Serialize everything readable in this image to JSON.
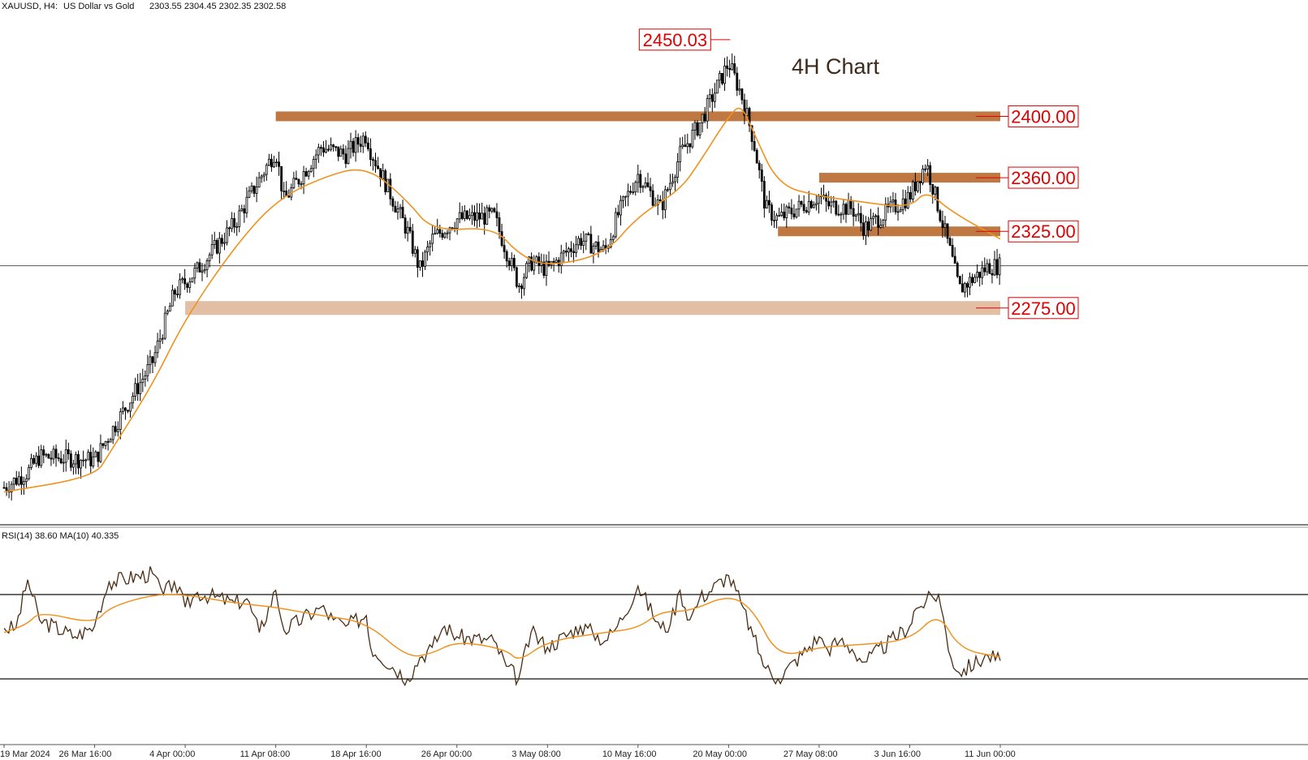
{
  "header": {
    "symbol": "XAUUSD, H4:",
    "description": "US Dollar vs Gold",
    "ohlc": "2303.55 2304.45 2302.35 2302.58"
  },
  "annotation": "4H Chart",
  "colors": {
    "candle": "#000000",
    "ma": "#f0921e",
    "zone_dark": "#c07843",
    "zone_light": "#e2bfa4",
    "label_text": "#e00000",
    "label_border": "#e00000",
    "rsi_line": "#4a2c12",
    "rsi_ma": "#f0921e"
  },
  "chart_data": [
    {
      "type": "candlestick",
      "panel": "price",
      "symbol": "XAUUSD",
      "timeframe": "H4",
      "x_range": [
        "19 Mar 2024",
        "11 Jun 00:00"
      ],
      "ylim": [
        2140,
        2460
      ],
      "x_tick_labels": [
        "19 Mar 2024",
        "26 Mar 16:00",
        "4 Apr 00:00",
        "11 Apr 08:00",
        "18 Apr 16:00",
        "26 Apr 00:00",
        "3 May 08:00",
        "10 May 16:00",
        "20 May 00:00",
        "27 May 08:00",
        "3 Jun 16:00",
        "11 Jun 00:00"
      ],
      "price_path": [
        {
          "x": "19 Mar 2024",
          "y": 2158
        },
        {
          "x": "21 Mar",
          "y": 2168
        },
        {
          "x": "22 Mar",
          "y": 2178
        },
        {
          "x": "26 Mar 16:00",
          "y": 2176
        },
        {
          "x": "28 Mar",
          "y": 2192
        },
        {
          "x": "1 Apr",
          "y": 2240
        },
        {
          "x": "3 Apr",
          "y": 2285
        },
        {
          "x": "4 Apr 00:00",
          "y": 2292
        },
        {
          "x": "5 Apr",
          "y": 2300
        },
        {
          "x": "8 Apr",
          "y": 2330
        },
        {
          "x": "11 Apr 08:00",
          "y": 2378
        },
        {
          "x": "12 Apr",
          "y": 2345
        },
        {
          "x": "15 Apr",
          "y": 2380
        },
        {
          "x": "17 Apr",
          "y": 2375
        },
        {
          "x": "18 Apr 16:00",
          "y": 2388
        },
        {
          "x": "19 Apr",
          "y": 2378
        },
        {
          "x": "22 Apr",
          "y": 2325
        },
        {
          "x": "23 Apr",
          "y": 2300
        },
        {
          "x": "24 Apr",
          "y": 2320
        },
        {
          "x": "26 Apr 00:00",
          "y": 2333
        },
        {
          "x": "29 Apr",
          "y": 2335
        },
        {
          "x": "1 May",
          "y": 2290
        },
        {
          "x": "2 May",
          "y": 2305
        },
        {
          "x": "3 May 08:00",
          "y": 2300
        },
        {
          "x": "6 May",
          "y": 2320
        },
        {
          "x": "8 May",
          "y": 2312
        },
        {
          "x": "9 May",
          "y": 2335
        },
        {
          "x": "10 May 16:00",
          "y": 2362
        },
        {
          "x": "13 May",
          "y": 2340
        },
        {
          "x": "15 May",
          "y": 2375
        },
        {
          "x": "17 May",
          "y": 2395
        },
        {
          "x": "20 May 00:00",
          "y": 2435
        },
        {
          "x": "20 May 12:00",
          "y": 2425
        },
        {
          "x": "21 May",
          "y": 2415
        },
        {
          "x": "22 May",
          "y": 2385
        },
        {
          "x": "23 May",
          "y": 2340
        },
        {
          "x": "24 May",
          "y": 2333
        },
        {
          "x": "27 May 08:00",
          "y": 2348
        },
        {
          "x": "28 May",
          "y": 2342
        },
        {
          "x": "30 May",
          "y": 2340
        },
        {
          "x": "31 May",
          "y": 2327
        },
        {
          "x": "3 Jun 16:00",
          "y": 2348
        },
        {
          "x": "5 Jun",
          "y": 2370
        },
        {
          "x": "7 Jun",
          "y": 2310
        },
        {
          "x": "7 Jun 16:00",
          "y": 2287
        },
        {
          "x": "10 Jun",
          "y": 2302
        },
        {
          "x": "11 Jun 00:00",
          "y": 2302.58
        }
      ],
      "moving_average_path": [
        {
          "x": "19 Mar 2024",
          "y": 2155
        },
        {
          "x": "26 Mar 16:00",
          "y": 2165
        },
        {
          "x": "28 Mar",
          "y": 2180
        },
        {
          "x": "1 Apr",
          "y": 2225
        },
        {
          "x": "4 Apr 00:00",
          "y": 2268
        },
        {
          "x": "8 Apr",
          "y": 2315
        },
        {
          "x": "11 Apr 08:00",
          "y": 2345
        },
        {
          "x": "15 Apr",
          "y": 2360
        },
        {
          "x": "18 Apr 16:00",
          "y": 2368
        },
        {
          "x": "22 Apr",
          "y": 2345
        },
        {
          "x": "24 Apr",
          "y": 2325
        },
        {
          "x": "29 Apr",
          "y": 2328
        },
        {
          "x": "1 May",
          "y": 2310
        },
        {
          "x": "3 May 08:00",
          "y": 2302
        },
        {
          "x": "8 May",
          "y": 2310
        },
        {
          "x": "10 May 16:00",
          "y": 2335
        },
        {
          "x": "15 May",
          "y": 2352
        },
        {
          "x": "17 May",
          "y": 2370
        },
        {
          "x": "20 May 00:00",
          "y": 2400
        },
        {
          "x": "21 May",
          "y": 2408
        },
        {
          "x": "22 May",
          "y": 2390
        },
        {
          "x": "24 May",
          "y": 2355
        },
        {
          "x": "27 May 08:00",
          "y": 2348
        },
        {
          "x": "30 May",
          "y": 2345
        },
        {
          "x": "3 Jun 16:00",
          "y": 2340
        },
        {
          "x": "5 Jun",
          "y": 2352
        },
        {
          "x": "7 Jun",
          "y": 2338
        },
        {
          "x": "11 Jun 00:00",
          "y": 2320
        }
      ],
      "current_price": 2302.58,
      "zones": [
        {
          "level": "2400.00",
          "y": 2400,
          "from": "11 Apr 08:00",
          "to": "11 Jun 00:00",
          "shade": "dark"
        },
        {
          "level": "2360.00",
          "y": 2360,
          "from": "27 May 08:00",
          "to": "11 Jun 00:00",
          "shade": "dark"
        },
        {
          "level": "2325.00",
          "y": 2325,
          "from": "24 May",
          "to": "11 Jun 00:00",
          "shade": "dark"
        },
        {
          "level": "2275.00",
          "y": 2275,
          "from": "4 Apr 00:00",
          "to": "11 Jun 00:00",
          "shade": "light"
        }
      ],
      "high_label": {
        "text": "2450.03",
        "y": 2450.03,
        "x": "20 May 00:00"
      }
    },
    {
      "type": "line",
      "panel": "rsi",
      "title": "RSI(14) 38.60 MA(10) 40.335",
      "ylim": [
        0,
        100
      ],
      "levels": [
        70,
        30
      ],
      "series": [
        {
          "name": "RSI(14)",
          "points": [
            {
              "x": "19 Mar 2024",
              "y": 54
            },
            {
              "x": "20 Mar",
              "y": 54
            },
            {
              "x": "21 Mar",
              "y": 77
            },
            {
              "x": "22 Mar",
              "y": 58
            },
            {
              "x": "25 Mar",
              "y": 50
            },
            {
              "x": "26 Mar 16:00",
              "y": 55
            },
            {
              "x": "27 Mar",
              "y": 62
            },
            {
              "x": "28 Mar",
              "y": 76
            },
            {
              "x": "1 Apr",
              "y": 80
            },
            {
              "x": "2 Apr",
              "y": 70
            },
            {
              "x": "3 Apr",
              "y": 76
            },
            {
              "x": "4 Apr 00:00",
              "y": 64
            },
            {
              "x": "5 Apr",
              "y": 71
            },
            {
              "x": "8 Apr",
              "y": 66
            },
            {
              "x": "9 Apr",
              "y": 68
            },
            {
              "x": "10 Apr",
              "y": 52
            },
            {
              "x": "11 Apr 08:00",
              "y": 72
            },
            {
              "x": "12 Apr",
              "y": 53
            },
            {
              "x": "15 Apr",
              "y": 64
            },
            {
              "x": "16 Apr",
              "y": 58
            },
            {
              "x": "17 Apr",
              "y": 55
            },
            {
              "x": "18 Apr 16:00",
              "y": 60
            },
            {
              "x": "19 Apr",
              "y": 45
            },
            {
              "x": "22 Apr",
              "y": 30
            },
            {
              "x": "23 Apr",
              "y": 40
            },
            {
              "x": "24 Apr",
              "y": 45
            },
            {
              "x": "25 Apr",
              "y": 55
            },
            {
              "x": "26 Apr 00:00",
              "y": 50
            },
            {
              "x": "29 Apr",
              "y": 48
            },
            {
              "x": "30 Apr",
              "y": 36
            },
            {
              "x": "1 May",
              "y": 30
            },
            {
              "x": "2 May",
              "y": 52
            },
            {
              "x": "3 May 08:00",
              "y": 45
            },
            {
              "x": "6 May",
              "y": 55
            },
            {
              "x": "7 May",
              "y": 52
            },
            {
              "x": "8 May",
              "y": 48
            },
            {
              "x": "9 May",
              "y": 55
            },
            {
              "x": "10 May 16:00",
              "y": 74
            },
            {
              "x": "13 May",
              "y": 54
            },
            {
              "x": "14 May",
              "y": 56
            },
            {
              "x": "15 May",
              "y": 72
            },
            {
              "x": "16 May",
              "y": 58
            },
            {
              "x": "17 May",
              "y": 68
            },
            {
              "x": "20 May 00:00",
              "y": 79
            },
            {
              "x": "21 May",
              "y": 66
            },
            {
              "x": "22 May",
              "y": 50
            },
            {
              "x": "23 May",
              "y": 35
            },
            {
              "x": "24 May",
              "y": 30
            },
            {
              "x": "27 May 08:00",
              "y": 50
            },
            {
              "x": "28 May",
              "y": 44
            },
            {
              "x": "29 May",
              "y": 48
            },
            {
              "x": "30 May",
              "y": 44
            },
            {
              "x": "31 May",
              "y": 38
            },
            {
              "x": "3 Jun 16:00",
              "y": 55
            },
            {
              "x": "4 Jun",
              "y": 62
            },
            {
              "x": "5 Jun",
              "y": 67
            },
            {
              "x": "6 Jun",
              "y": 70
            },
            {
              "x": "7 Jun",
              "y": 40
            },
            {
              "x": "7 Jun 16:00",
              "y": 33
            },
            {
              "x": "10 Jun",
              "y": 41
            },
            {
              "x": "11 Jun 00:00",
              "y": 38.6
            }
          ]
        },
        {
          "name": "MA(10)",
          "points": [
            {
              "x": "19 Mar 2024",
              "y": 52
            },
            {
              "x": "21 Mar",
              "y": 56
            },
            {
              "x": "22 Mar",
              "y": 62
            },
            {
              "x": "26 Mar 16:00",
              "y": 56
            },
            {
              "x": "28 Mar",
              "y": 64
            },
            {
              "x": "1 Apr",
              "y": 70
            },
            {
              "x": "4 Apr 00:00",
              "y": 70
            },
            {
              "x": "8 Apr",
              "y": 66
            },
            {
              "x": "11 Apr 08:00",
              "y": 64
            },
            {
              "x": "15 Apr",
              "y": 60
            },
            {
              "x": "18 Apr 16:00",
              "y": 57
            },
            {
              "x": "22 Apr",
              "y": 40
            },
            {
              "x": "24 Apr",
              "y": 42
            },
            {
              "x": "26 Apr 00:00",
              "y": 48
            },
            {
              "x": "30 Apr",
              "y": 44
            },
            {
              "x": "1 May",
              "y": 38
            },
            {
              "x": "3 May 08:00",
              "y": 48
            },
            {
              "x": "8 May",
              "y": 52
            },
            {
              "x": "10 May 16:00",
              "y": 54
            },
            {
              "x": "13 May",
              "y": 62
            },
            {
              "x": "16 May",
              "y": 62
            },
            {
              "x": "20 May 00:00",
              "y": 70
            },
            {
              "x": "22 May",
              "y": 63
            },
            {
              "x": "24 May",
              "y": 40
            },
            {
              "x": "27 May 08:00",
              "y": 45
            },
            {
              "x": "30 May",
              "y": 46
            },
            {
              "x": "3 Jun 16:00",
              "y": 48
            },
            {
              "x": "6 Jun",
              "y": 62
            },
            {
              "x": "7 Jun 16:00",
              "y": 44
            },
            {
              "x": "11 Jun 00:00",
              "y": 40.335
            }
          ]
        }
      ]
    }
  ]
}
